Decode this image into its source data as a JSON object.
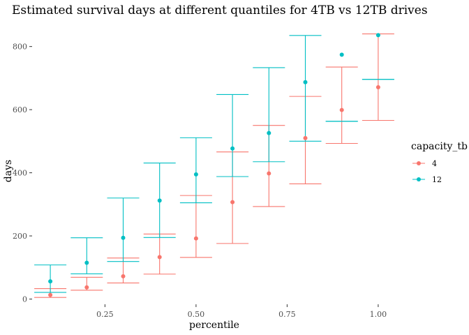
{
  "chart_data": {
    "type": "scatter",
    "title": "Estimated survival days at different quantiles for 4TB vs 12TB drives",
    "xlabel": "percentile",
    "ylabel": "days",
    "x_ticks": [
      0.25,
      0.5,
      0.75,
      1.0
    ],
    "x_tick_labels": [
      "0.25",
      "0.50",
      "0.75",
      "1.00"
    ],
    "y_ticks": [
      0,
      200,
      400,
      600,
      800
    ],
    "y_tick_labels": [
      "0",
      "200",
      "400",
      "600",
      "800"
    ],
    "xlim": [
      0.05,
      1.05
    ],
    "ylim": [
      -10,
      870
    ],
    "grid": false,
    "legend": {
      "title": "capacity_tb",
      "position": "right"
    },
    "series": [
      {
        "name": "4",
        "color": "#F8766D",
        "points": [
          {
            "x": 0.1,
            "y": 13,
            "lo": 5,
            "hi": 33
          },
          {
            "x": 0.2,
            "y": 37,
            "lo": 28,
            "hi": 69
          },
          {
            "x": 0.3,
            "y": 72,
            "lo": 51,
            "hi": 130
          },
          {
            "x": 0.4,
            "y": 133,
            "lo": 79,
            "hi": 206
          },
          {
            "x": 0.5,
            "y": 192,
            "lo": 132,
            "hi": 328
          },
          {
            "x": 0.6,
            "y": 307,
            "lo": 176,
            "hi": 466
          },
          {
            "x": 0.7,
            "y": 398,
            "lo": 293,
            "hi": 550
          },
          {
            "x": 0.8,
            "y": 510,
            "lo": 365,
            "hi": 642
          },
          {
            "x": 0.9,
            "y": 599,
            "lo": 493,
            "hi": 735
          },
          {
            "x": 1.0,
            "y": 671,
            "lo": 566,
            "hi": 840
          }
        ]
      },
      {
        "name": "12",
        "color": "#00BFC4",
        "points": [
          {
            "x": 0.1,
            "y": 56,
            "lo": 21,
            "hi": 108
          },
          {
            "x": 0.2,
            "y": 115,
            "lo": 80,
            "hi": 194
          },
          {
            "x": 0.3,
            "y": 194,
            "lo": 119,
            "hi": 320
          },
          {
            "x": 0.4,
            "y": 312,
            "lo": 195,
            "hi": 431
          },
          {
            "x": 0.5,
            "y": 395,
            "lo": 305,
            "hi": 511
          },
          {
            "x": 0.6,
            "y": 477,
            "lo": 388,
            "hi": 648
          },
          {
            "x": 0.7,
            "y": 526,
            "lo": 435,
            "hi": 733
          },
          {
            "x": 0.8,
            "y": 687,
            "lo": 500,
            "hi": 835
          },
          {
            "x": 0.9,
            "y": 774,
            "lo": 563,
            "hi": 563
          },
          {
            "x": 1.0,
            "y": 836,
            "lo": 696,
            "hi": 696
          }
        ]
      }
    ]
  }
}
